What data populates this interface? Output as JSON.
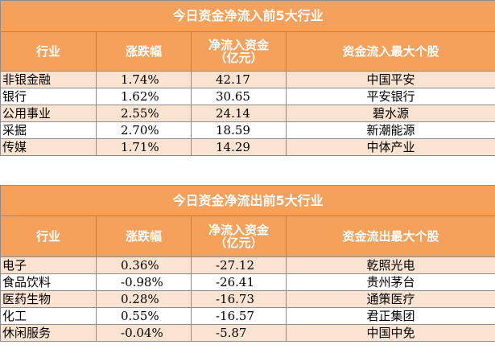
{
  "inflow": {
    "title": "今日资金净流入前5大行业",
    "headers": {
      "industry": "行业",
      "change": "涨跌幅",
      "amount_line1": "净流入资金",
      "amount_line2": "（亿元）",
      "top_stock": "资金流入最大个股"
    },
    "rows": [
      {
        "industry": "非银金融",
        "change": "1.74%",
        "amount": "42.17",
        "stock": "中国平安"
      },
      {
        "industry": "银行",
        "change": "1.62%",
        "amount": "30.65",
        "stock": "平安银行"
      },
      {
        "industry": "公用事业",
        "change": "2.55%",
        "amount": "24.14",
        "stock": "碧水源"
      },
      {
        "industry": "采掘",
        "change": "2.70%",
        "amount": "18.59",
        "stock": "新潮能源"
      },
      {
        "industry": "传媒",
        "change": "1.71%",
        "amount": "14.29",
        "stock": "中体产业"
      }
    ]
  },
  "outflow": {
    "title": "今日资金净流出前5大行业",
    "headers": {
      "industry": "行业",
      "change": "涨跌幅",
      "amount_line1": "净流入资金",
      "amount_line2": "（亿元）",
      "top_stock": "资金流出最大个股"
    },
    "rows": [
      {
        "industry": "电子",
        "change": "0.36%",
        "amount": "-27.12",
        "stock": "乾照光电"
      },
      {
        "industry": "食品饮料",
        "change": "-0.98%",
        "amount": "-26.41",
        "stock": "贵州茅台"
      },
      {
        "industry": "医药生物",
        "change": "0.28%",
        "amount": "-16.73",
        "stock": "通策医疗"
      },
      {
        "industry": "化工",
        "change": "0.55%",
        "amount": "-16.57",
        "stock": "君正集团"
      },
      {
        "industry": "休闲服务",
        "change": "-0.04%",
        "amount": "-5.87",
        "stock": "中国中免"
      }
    ]
  },
  "colors": {
    "header_bg": "#f5a15c",
    "stripe_bg": "#fbe3d1",
    "border": "#8c8c8c"
  }
}
